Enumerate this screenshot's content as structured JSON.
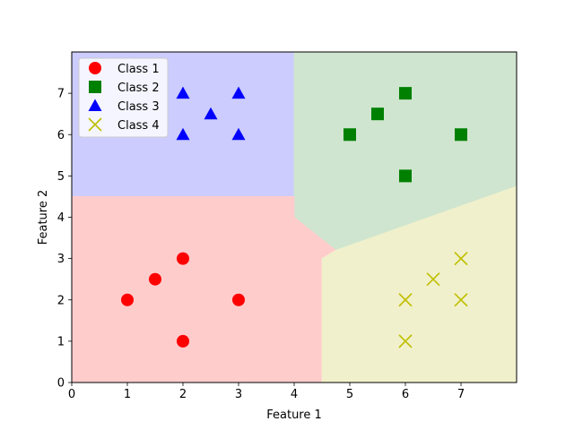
{
  "chart_data": {
    "type": "scatter",
    "title": "",
    "xlabel": "Feature 1",
    "ylabel": "Feature 2",
    "xlim": [
      0,
      8
    ],
    "ylim": [
      0,
      8
    ],
    "xticks": [
      0,
      1,
      2,
      3,
      4,
      5,
      6,
      7
    ],
    "yticks": [
      0,
      1,
      2,
      3,
      4,
      5,
      6,
      7
    ],
    "grid": false,
    "legend_position": "top-left",
    "series": [
      {
        "name": "Class 1",
        "marker": "circle",
        "color": "#ff0000",
        "points": [
          [
            1,
            2
          ],
          [
            1.5,
            2.5
          ],
          [
            2,
            3
          ],
          [
            2,
            1
          ],
          [
            3,
            2
          ]
        ]
      },
      {
        "name": "Class 2",
        "marker": "square",
        "color": "#008000",
        "points": [
          [
            5,
            6
          ],
          [
            5.5,
            6.5
          ],
          [
            6,
            7
          ],
          [
            6,
            5
          ],
          [
            7,
            6
          ]
        ]
      },
      {
        "name": "Class 3",
        "marker": "triangle",
        "color": "#0000ff",
        "points": [
          [
            2,
            6
          ],
          [
            2,
            7
          ],
          [
            2.5,
            6.5
          ],
          [
            3,
            6
          ],
          [
            3,
            7
          ]
        ]
      },
      {
        "name": "Class 4",
        "marker": "x",
        "color": "#bfbf00",
        "points": [
          [
            6,
            1
          ],
          [
            6,
            2
          ],
          [
            6.5,
            2.5
          ],
          [
            7,
            2
          ],
          [
            7,
            3
          ]
        ]
      }
    ],
    "regions": [
      {
        "class": "Class 3",
        "color": "#ccccff",
        "polygon": [
          [
            0,
            8
          ],
          [
            4,
            8
          ],
          [
            4,
            4.5
          ],
          [
            0,
            4.5
          ]
        ]
      },
      {
        "class": "Class 2",
        "color": "#cfe5cf",
        "polygon": [
          [
            4,
            8
          ],
          [
            8,
            8
          ],
          [
            8,
            4.75
          ],
          [
            4.75,
            3.2
          ],
          [
            4,
            4
          ]
        ]
      },
      {
        "class": "Class 1",
        "color": "#ffcccc",
        "polygon": [
          [
            0,
            4.5
          ],
          [
            4,
            4.5
          ],
          [
            4,
            4
          ],
          [
            4.75,
            3.2
          ],
          [
            4.5,
            3
          ],
          [
            4.5,
            0
          ],
          [
            0,
            0
          ]
        ]
      },
      {
        "class": "Class 4",
        "color": "#f0f0cc",
        "polygon": [
          [
            4.5,
            3
          ],
          [
            4.75,
            3.2
          ],
          [
            8,
            4.75
          ],
          [
            8,
            0
          ],
          [
            4.5,
            0
          ]
        ]
      }
    ]
  }
}
